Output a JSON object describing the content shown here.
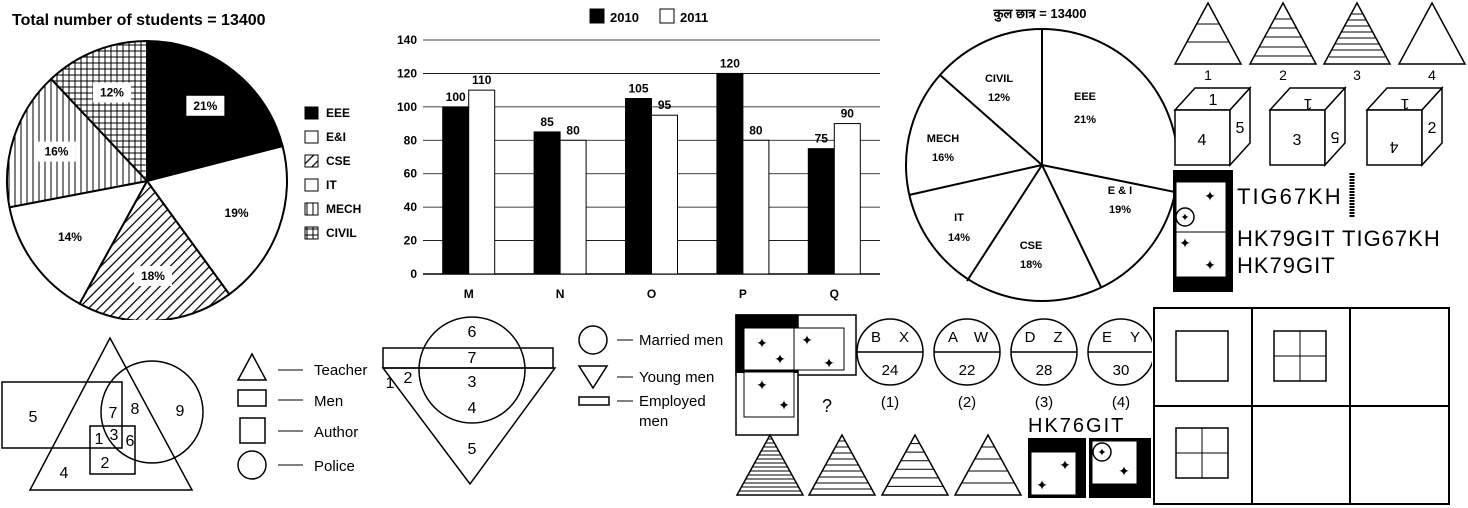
{
  "pie1": {
    "title": "Total number of students = 13400",
    "slices": [
      {
        "label": "EEE",
        "pct": "21%",
        "value": 21,
        "fill": "#000000"
      },
      {
        "label": "E&I",
        "pct": "19%",
        "value": 19,
        "fill": "#ffffff"
      },
      {
        "label": "CSE",
        "pct": "18%",
        "value": 18,
        "fill": "diag"
      },
      {
        "label": "IT",
        "pct": "14%",
        "value": 14,
        "fill": "#ffffff"
      },
      {
        "label": "MECH",
        "pct": "16%",
        "value": 16,
        "fill": "vert"
      },
      {
        "label": "CIVIL",
        "pct": "12%",
        "value": 12,
        "fill": "grid"
      }
    ]
  },
  "chart_data": {
    "type": "bar",
    "categories": [
      "M",
      "N",
      "O",
      "P",
      "Q"
    ],
    "series": [
      {
        "name": "2010",
        "values": [
          100,
          85,
          105,
          120,
          75
        ],
        "color": "#000000"
      },
      {
        "name": "2011",
        "values": [
          110,
          80,
          95,
          80,
          90
        ],
        "color": "#ffffff"
      }
    ],
    "yticks": [
      "0",
      "20",
      "40",
      "60",
      "80",
      "100",
      "120",
      "140"
    ],
    "ylim": [
      0,
      140
    ],
    "grid": true,
    "legend": "top"
  },
  "pie2": {
    "title": "कुल छात्र = 13400",
    "slices": [
      {
        "name": "EEE",
        "pct": "21%"
      },
      {
        "name": "E & I",
        "pct": "19%"
      },
      {
        "name": "CSE",
        "pct": "18%"
      },
      {
        "name": "IT",
        "pct": "14%"
      },
      {
        "name": "MECH",
        "pct": "16%"
      },
      {
        "name": "CIVIL",
        "pct": "12%"
      }
    ]
  },
  "triangle_options": [
    "1",
    "2",
    "3",
    "4"
  ],
  "cubes": [
    {
      "top": "1",
      "front": "4",
      "side": "5"
    },
    {
      "top": "1",
      "front": "3",
      "side": "5"
    },
    {
      "top": "1",
      "front": "4",
      "side": "2"
    }
  ],
  "mirror": {
    "text": "TIG67KH",
    "row1": "HK79GIT TIG67KH",
    "row2": "HK79GIT",
    "answer_text": "HK76GIT"
  },
  "venn1": {
    "numbers": [
      "5",
      "7",
      "8",
      "9",
      "1",
      "3",
      "6",
      "4",
      "2"
    ]
  },
  "venn_legend1": {
    "items": [
      "Teacher",
      "Men",
      "Author",
      "Police"
    ]
  },
  "venn2": {
    "numbers": [
      "6",
      "7",
      "3",
      "1",
      "2",
      "4",
      "5"
    ]
  },
  "venn_legend2": {
    "items": [
      "Married men",
      "Young men",
      "Employed men"
    ]
  },
  "question_mark": "?",
  "circles": [
    {
      "top_left": "B",
      "top_right": "X",
      "bottom": "24",
      "opt": "(1)"
    },
    {
      "top_left": "A",
      "top_right": "W",
      "bottom": "22",
      "opt": "(2)"
    },
    {
      "top_left": "D",
      "top_right": "Z",
      "bottom": "28",
      "opt": "(3)"
    },
    {
      "top_left": "E",
      "top_right": "Y",
      "bottom": "30",
      "opt": "(4)"
    }
  ]
}
